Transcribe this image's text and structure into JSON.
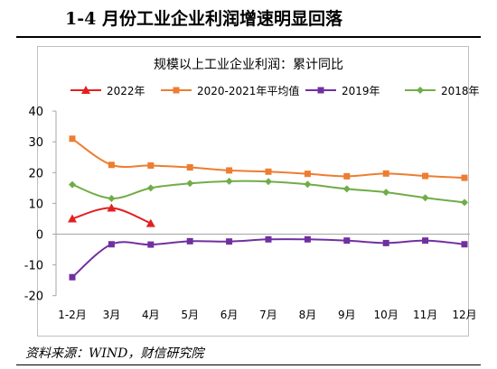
{
  "header": {
    "title": "1-4 月份工业企业利润增速明显回落"
  },
  "source_note": "资料来源：WIND，财信研究院",
  "chart_data": {
    "type": "line",
    "title": "规模以上工业企业利润：累计同比",
    "xlabel": "",
    "ylabel": "",
    "categories": [
      "1-2月",
      "3月",
      "4月",
      "5月",
      "6月",
      "7月",
      "8月",
      "9月",
      "10月",
      "11月",
      "12月"
    ],
    "ylim": [
      -20,
      40
    ],
    "yticks": [
      -20,
      -10,
      0,
      10,
      20,
      30,
      40
    ],
    "grid": false,
    "legend_position": "top",
    "series": [
      {
        "name": "2022年",
        "color": "#e32020",
        "marker": "triangle",
        "values": [
          5.0,
          8.5,
          3.5,
          null,
          null,
          null,
          null,
          null,
          null,
          null,
          null
        ]
      },
      {
        "name": "2020-2021年平均值",
        "color": "#ed7d31",
        "marker": "square",
        "values": [
          31.0,
          22.5,
          22.3,
          21.7,
          20.7,
          20.3,
          19.6,
          18.8,
          19.7,
          18.9,
          18.3
        ]
      },
      {
        "name": "2019年",
        "color": "#7030a0",
        "marker": "square",
        "values": [
          -14.0,
          -3.3,
          -3.4,
          -2.3,
          -2.4,
          -1.7,
          -1.7,
          -2.1,
          -2.9,
          -2.1,
          -3.3
        ]
      },
      {
        "name": "2018年",
        "color": "#70ad47",
        "marker": "diamond",
        "values": [
          16.1,
          11.6,
          15.0,
          16.5,
          17.2,
          17.1,
          16.2,
          14.7,
          13.6,
          11.8,
          10.3
        ]
      }
    ]
  }
}
